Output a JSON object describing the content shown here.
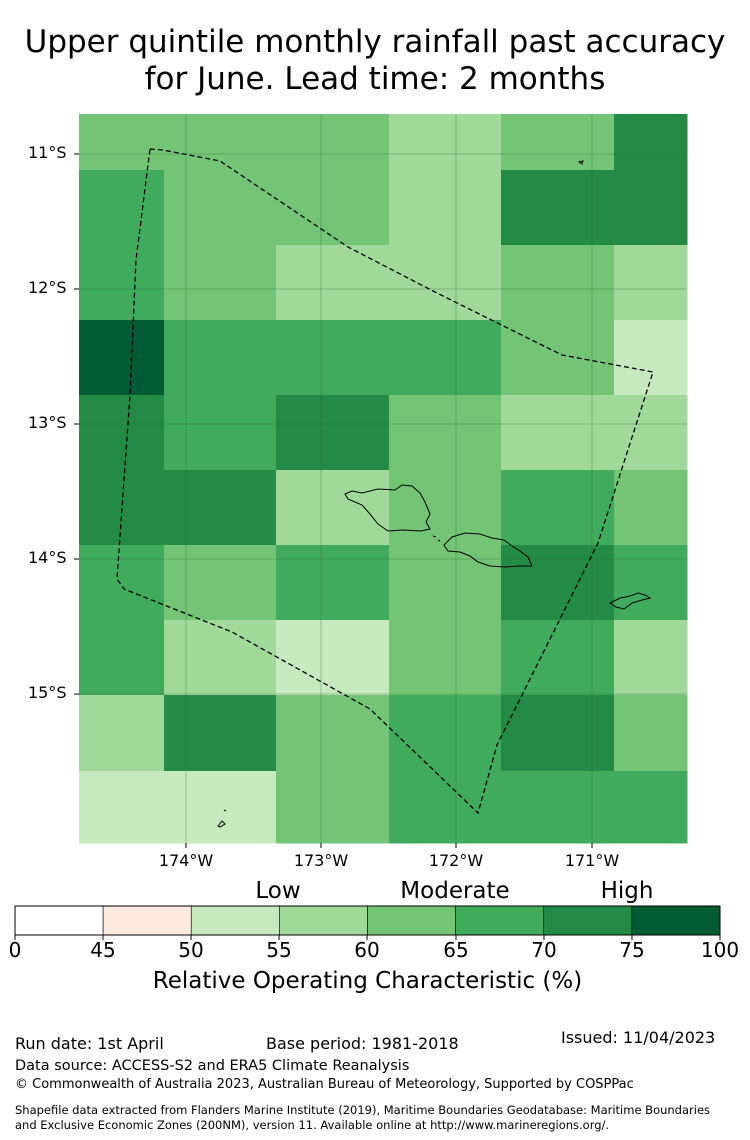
{
  "title": {
    "line1": "Upper quintile monthly rainfall past accuracy",
    "line2": "for June. Lead time: 2 months"
  },
  "map": {
    "lat_labels": [
      "11°S",
      "12°S",
      "13°S",
      "14°S",
      "15°S"
    ],
    "lon_labels": [
      "174°W",
      "173°W",
      "172°W",
      "171°W"
    ],
    "grid": {
      "columns": [
        "174.6°W",
        "174.0°W",
        "173.2°W",
        "172.3°W",
        "171.5°W",
        "170.8°W"
      ],
      "rows": [
        [
          62,
          62,
          62,
          57,
          62,
          72
        ],
        [
          67,
          62,
          62,
          57,
          72,
          72
        ],
        [
          67,
          62,
          57,
          57,
          62,
          57
        ],
        [
          78,
          67,
          67,
          67,
          62,
          52
        ],
        [
          72,
          67,
          72,
          62,
          57,
          57
        ],
        [
          72,
          72,
          57,
          62,
          67,
          62
        ],
        [
          67,
          62,
          67,
          62,
          72,
          67
        ],
        [
          67,
          57,
          52,
          62,
          67,
          57
        ],
        [
          57,
          72,
          62,
          67,
          72,
          62
        ],
        [
          52,
          52,
          62,
          67,
          67,
          67
        ]
      ]
    }
  },
  "legend": {
    "categories": [
      "Low",
      "Moderate",
      "High"
    ],
    "ticks": [
      "0",
      "45",
      "50",
      "55",
      "60",
      "65",
      "70",
      "75",
      "100"
    ],
    "bins": [
      {
        "from": 0,
        "to": 45,
        "color": "#ffffff"
      },
      {
        "from": 45,
        "to": 50,
        "color": "#fee9df"
      },
      {
        "from": 50,
        "to": 55,
        "color": "#c7e9c0"
      },
      {
        "from": 55,
        "to": 60,
        "color": "#a1d99b"
      },
      {
        "from": 60,
        "to": 65,
        "color": "#74c476"
      },
      {
        "from": 65,
        "to": 70,
        "color": "#41ab5d"
      },
      {
        "from": 70,
        "to": 75,
        "color": "#238b45"
      },
      {
        "from": 75,
        "to": 100,
        "color": "#005a32"
      }
    ],
    "label": "Relative Operating Characteristic (%)"
  },
  "footer": {
    "run_date": "Run date: 1st April",
    "base_period": "Base period: 1981-2018",
    "issued": "Issued: 11/04/2023",
    "data_source": "Data source: ACCESS-S2 and ERA5 Climate Reanalysis",
    "copyright": "© Commonwealth of Australia 2023, Australian Bureau of Meteorology, Supported by COSPPac",
    "shapefile_line1": "Shapefile data extracted from Flanders Marine Institute (2019), Maritime Boundaries Geodatabase: Maritime Boundaries",
    "shapefile_line2": "and Exclusive Economic Zones (200NM), version 11. Available online at http://www.marineregions.org/."
  }
}
